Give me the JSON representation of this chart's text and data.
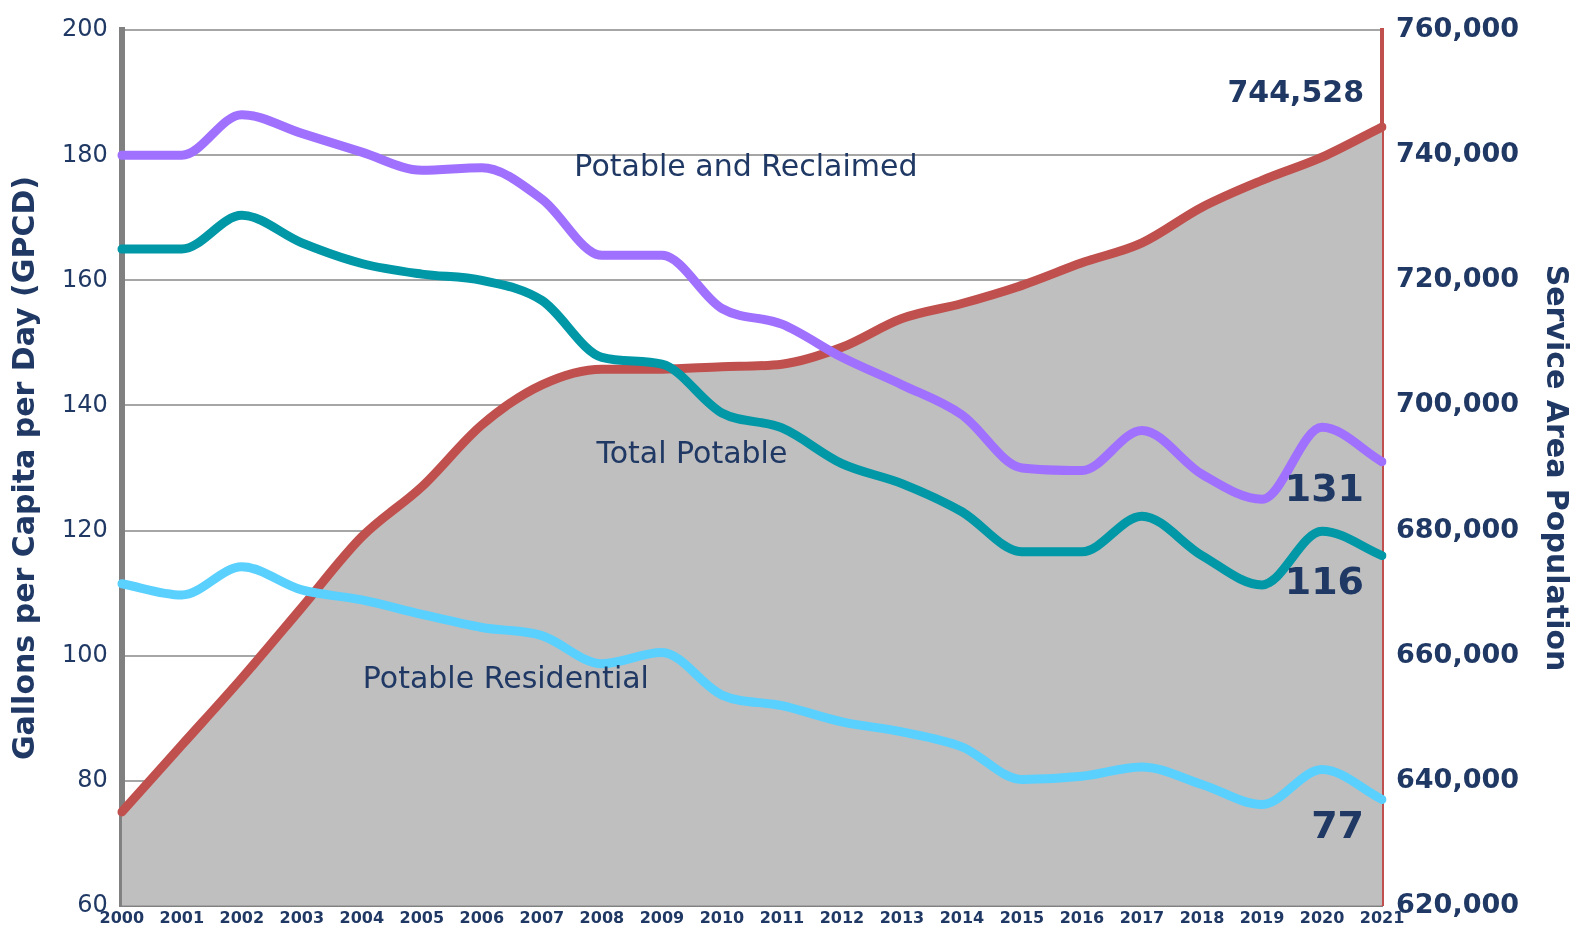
{
  "chart_data": {
    "type": "line",
    "ylabel": "Gallons per Capita per Day (GPCD)",
    "y2label": "Service Area Population",
    "categories": [
      "2000",
      "2001",
      "2002",
      "2003",
      "2004",
      "2005",
      "2006",
      "2007",
      "2008",
      "2009",
      "2010",
      "2011",
      "2012",
      "2013",
      "2014",
      "2015",
      "2016",
      "2017",
      "2018",
      "2019",
      "2020",
      "2021"
    ],
    "ylim": [
      60,
      200
    ],
    "yticks": [
      60,
      80,
      100,
      120,
      140,
      160,
      180,
      200
    ],
    "y2lim": [
      620000,
      760000
    ],
    "y2ticks": [
      {
        "value": 620000,
        "label": "620,000"
      },
      {
        "value": 640000,
        "label": "640,000"
      },
      {
        "value": 660000,
        "label": "660,000"
      },
      {
        "value": 680000,
        "label": "680,000"
      },
      {
        "value": 700000,
        "label": "700,000"
      },
      {
        "value": 720000,
        "label": "720,000"
      },
      {
        "value": 740000,
        "label": "740,000"
      },
      {
        "value": 760000,
        "label": "760,000"
      }
    ],
    "grid": "y",
    "legend": false,
    "marker": "none",
    "line_style": "solid",
    "series": [
      {
        "type": "area",
        "axis": "y2",
        "color": "#c0504d",
        "values": [
          635000,
          645700,
          656400,
          667700,
          679000,
          687000,
          696900,
          703300,
          705800,
          705800,
          706200,
          706600,
          709300,
          713900,
          716300,
          719200,
          722800,
          726000,
          731700,
          736000,
          739700,
          744528
        ],
        "value_labels": [
          null,
          null,
          null,
          null,
          null,
          null,
          null,
          null,
          null,
          null,
          null,
          null,
          null,
          null,
          null,
          null,
          null,
          null,
          null,
          null,
          null,
          "744,528"
        ]
      },
      {
        "name": "Potable and Reclaimed",
        "color": "#a070ff",
        "values": [
          180,
          180,
          186.5,
          183.5,
          180.5,
          177.6,
          178,
          173,
          164,
          164,
          155.5,
          153,
          147.7,
          143.3,
          138.5,
          130,
          129.6,
          136,
          129,
          125,
          136.5,
          131
        ],
        "value_labels": [
          null,
          null,
          null,
          null,
          null,
          null,
          null,
          null,
          null,
          null,
          null,
          null,
          null,
          null,
          null,
          null,
          null,
          null,
          null,
          null,
          null,
          "131"
        ]
      },
      {
        "name": "Total Potable",
        "color": "#0097a7",
        "values": [
          165,
          165,
          170.4,
          166,
          162.7,
          161,
          160,
          156.8,
          147.7,
          146.6,
          138.8,
          136.4,
          130.7,
          127.5,
          123,
          116.6,
          116.6,
          122.3,
          116,
          111.3,
          119.9,
          116
        ],
        "value_labels": [
          null,
          null,
          null,
          null,
          null,
          null,
          null,
          null,
          null,
          null,
          null,
          null,
          null,
          null,
          null,
          null,
          null,
          null,
          null,
          null,
          null,
          "116"
        ]
      },
      {
        "name": "Potable Residential",
        "color": "#5ad0ff",
        "values": [
          111.5,
          109.7,
          114.2,
          110.5,
          108.9,
          106.6,
          104.5,
          103.2,
          98.7,
          100.5,
          93.7,
          92,
          89.4,
          87.8,
          85.4,
          80.2,
          80.7,
          82.2,
          79.4,
          76.2,
          81.8,
          77
        ],
        "value_labels": [
          null,
          null,
          null,
          null,
          null,
          null,
          null,
          null,
          null,
          null,
          null,
          null,
          null,
          null,
          null,
          null,
          null,
          null,
          null,
          null,
          null,
          "77"
        ]
      }
    ]
  }
}
